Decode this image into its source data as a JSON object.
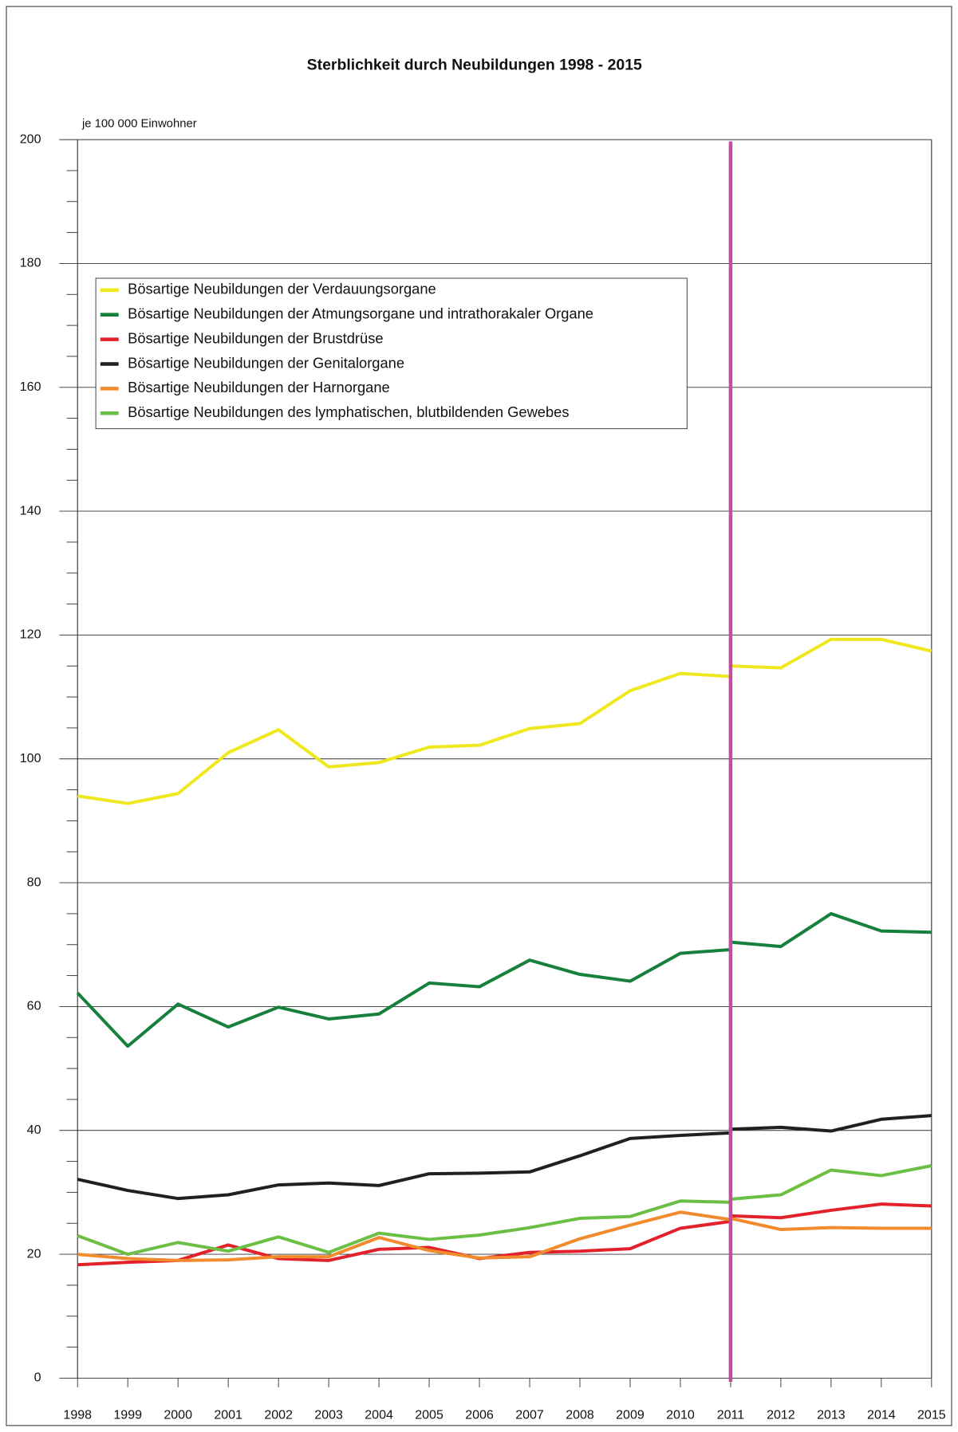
{
  "chart_data": {
    "type": "line",
    "title": "Sterblichkeit durch Neubildungen 1998 - 2015",
    "y_label": "je 100 000 Einwohner",
    "x": [
      1998,
      1999,
      2000,
      2001,
      2002,
      2003,
      2004,
      2005,
      2006,
      2007,
      2008,
      2009,
      2010,
      2011,
      2011,
      2011,
      2012,
      2013,
      2014,
      2015
    ],
    "series": [
      {
        "name": "Bösartige Neubildungen der Verdauungsorgane",
        "color": "#f0e81e",
        "values": [
          94.0,
          92.8,
          94.4,
          101.0,
          104.7,
          98.7,
          99.4,
          101.9,
          102.2,
          104.9,
          105.7,
          111.0,
          113.8,
          113.3,
          null,
          115.0,
          114.7,
          119.3,
          119.3,
          117.4
        ]
      },
      {
        "name": "Bösartige Neubildungen der Atmungsorgane und intrathorakaler Organe",
        "color": "#16803c",
        "values": [
          62.2,
          53.6,
          60.4,
          56.7,
          59.9,
          58.0,
          58.8,
          63.8,
          63.2,
          67.5,
          65.2,
          64.1,
          68.6,
          69.2,
          null,
          70.4,
          69.7,
          75.0,
          72.2,
          72.0
        ]
      },
      {
        "name": "Bösartige Neubildungen der Brustdrüse",
        "color": "#e3212a",
        "values": [
          18.3,
          18.7,
          19.0,
          21.5,
          19.3,
          19.0,
          20.8,
          21.1,
          19.3,
          20.3,
          20.5,
          20.9,
          24.2,
          25.3,
          null,
          26.2,
          25.9,
          27.1,
          28.1,
          27.8
        ]
      },
      {
        "name": "Bösartige Neubildungen der Genitalorgane",
        "color": "#231f20",
        "values": [
          32.1,
          30.3,
          29.0,
          29.6,
          31.2,
          31.5,
          31.1,
          33.0,
          33.1,
          33.3,
          35.9,
          38.7,
          39.2,
          39.6,
          null,
          40.2,
          40.5,
          39.9,
          41.8,
          42.4
        ]
      },
      {
        "name": "Bösartige Neubildungen der Harnorgane",
        "color": "#f28a2e",
        "values": [
          20.0,
          19.3,
          19.0,
          19.1,
          19.6,
          19.6,
          22.7,
          20.6,
          19.4,
          19.6,
          22.5,
          24.7,
          26.8,
          25.6,
          null,
          25.8,
          24.0,
          24.3,
          24.2,
          24.2
        ]
      },
      {
        "name": "Bösartige Neubildungen des lymphatischen, blutbildenden Gewebes",
        "color": "#6cbf45",
        "values": [
          23.0,
          20.0,
          21.9,
          20.5,
          22.8,
          20.3,
          23.4,
          22.4,
          23.1,
          24.3,
          25.8,
          26.1,
          28.6,
          28.4,
          null,
          28.9,
          29.6,
          33.6,
          32.7,
          34.3
        ]
      }
    ],
    "xlim": [
      1998,
      2015
    ],
    "xticks": [
      1998,
      1999,
      2000,
      2001,
      2002,
      2003,
      2004,
      2005,
      2006,
      2007,
      2008,
      2009,
      2010,
      2011,
      2012,
      2013,
      2014,
      2015
    ],
    "ylim": [
      0,
      200
    ],
    "yticks": [
      0,
      20,
      40,
      60,
      80,
      100,
      120,
      140,
      160,
      180,
      200
    ],
    "y_minor_ticks": [
      5,
      10,
      15,
      25,
      30,
      35,
      45,
      50,
      55,
      65,
      70,
      75,
      85,
      90,
      95,
      105,
      110,
      115,
      125,
      130,
      135,
      145,
      150,
      155,
      165,
      170,
      175,
      185,
      190,
      195
    ],
    "grid": true,
    "legend": "upper left",
    "break_line": {
      "x": 2011,
      "color": "#c0509f"
    }
  }
}
